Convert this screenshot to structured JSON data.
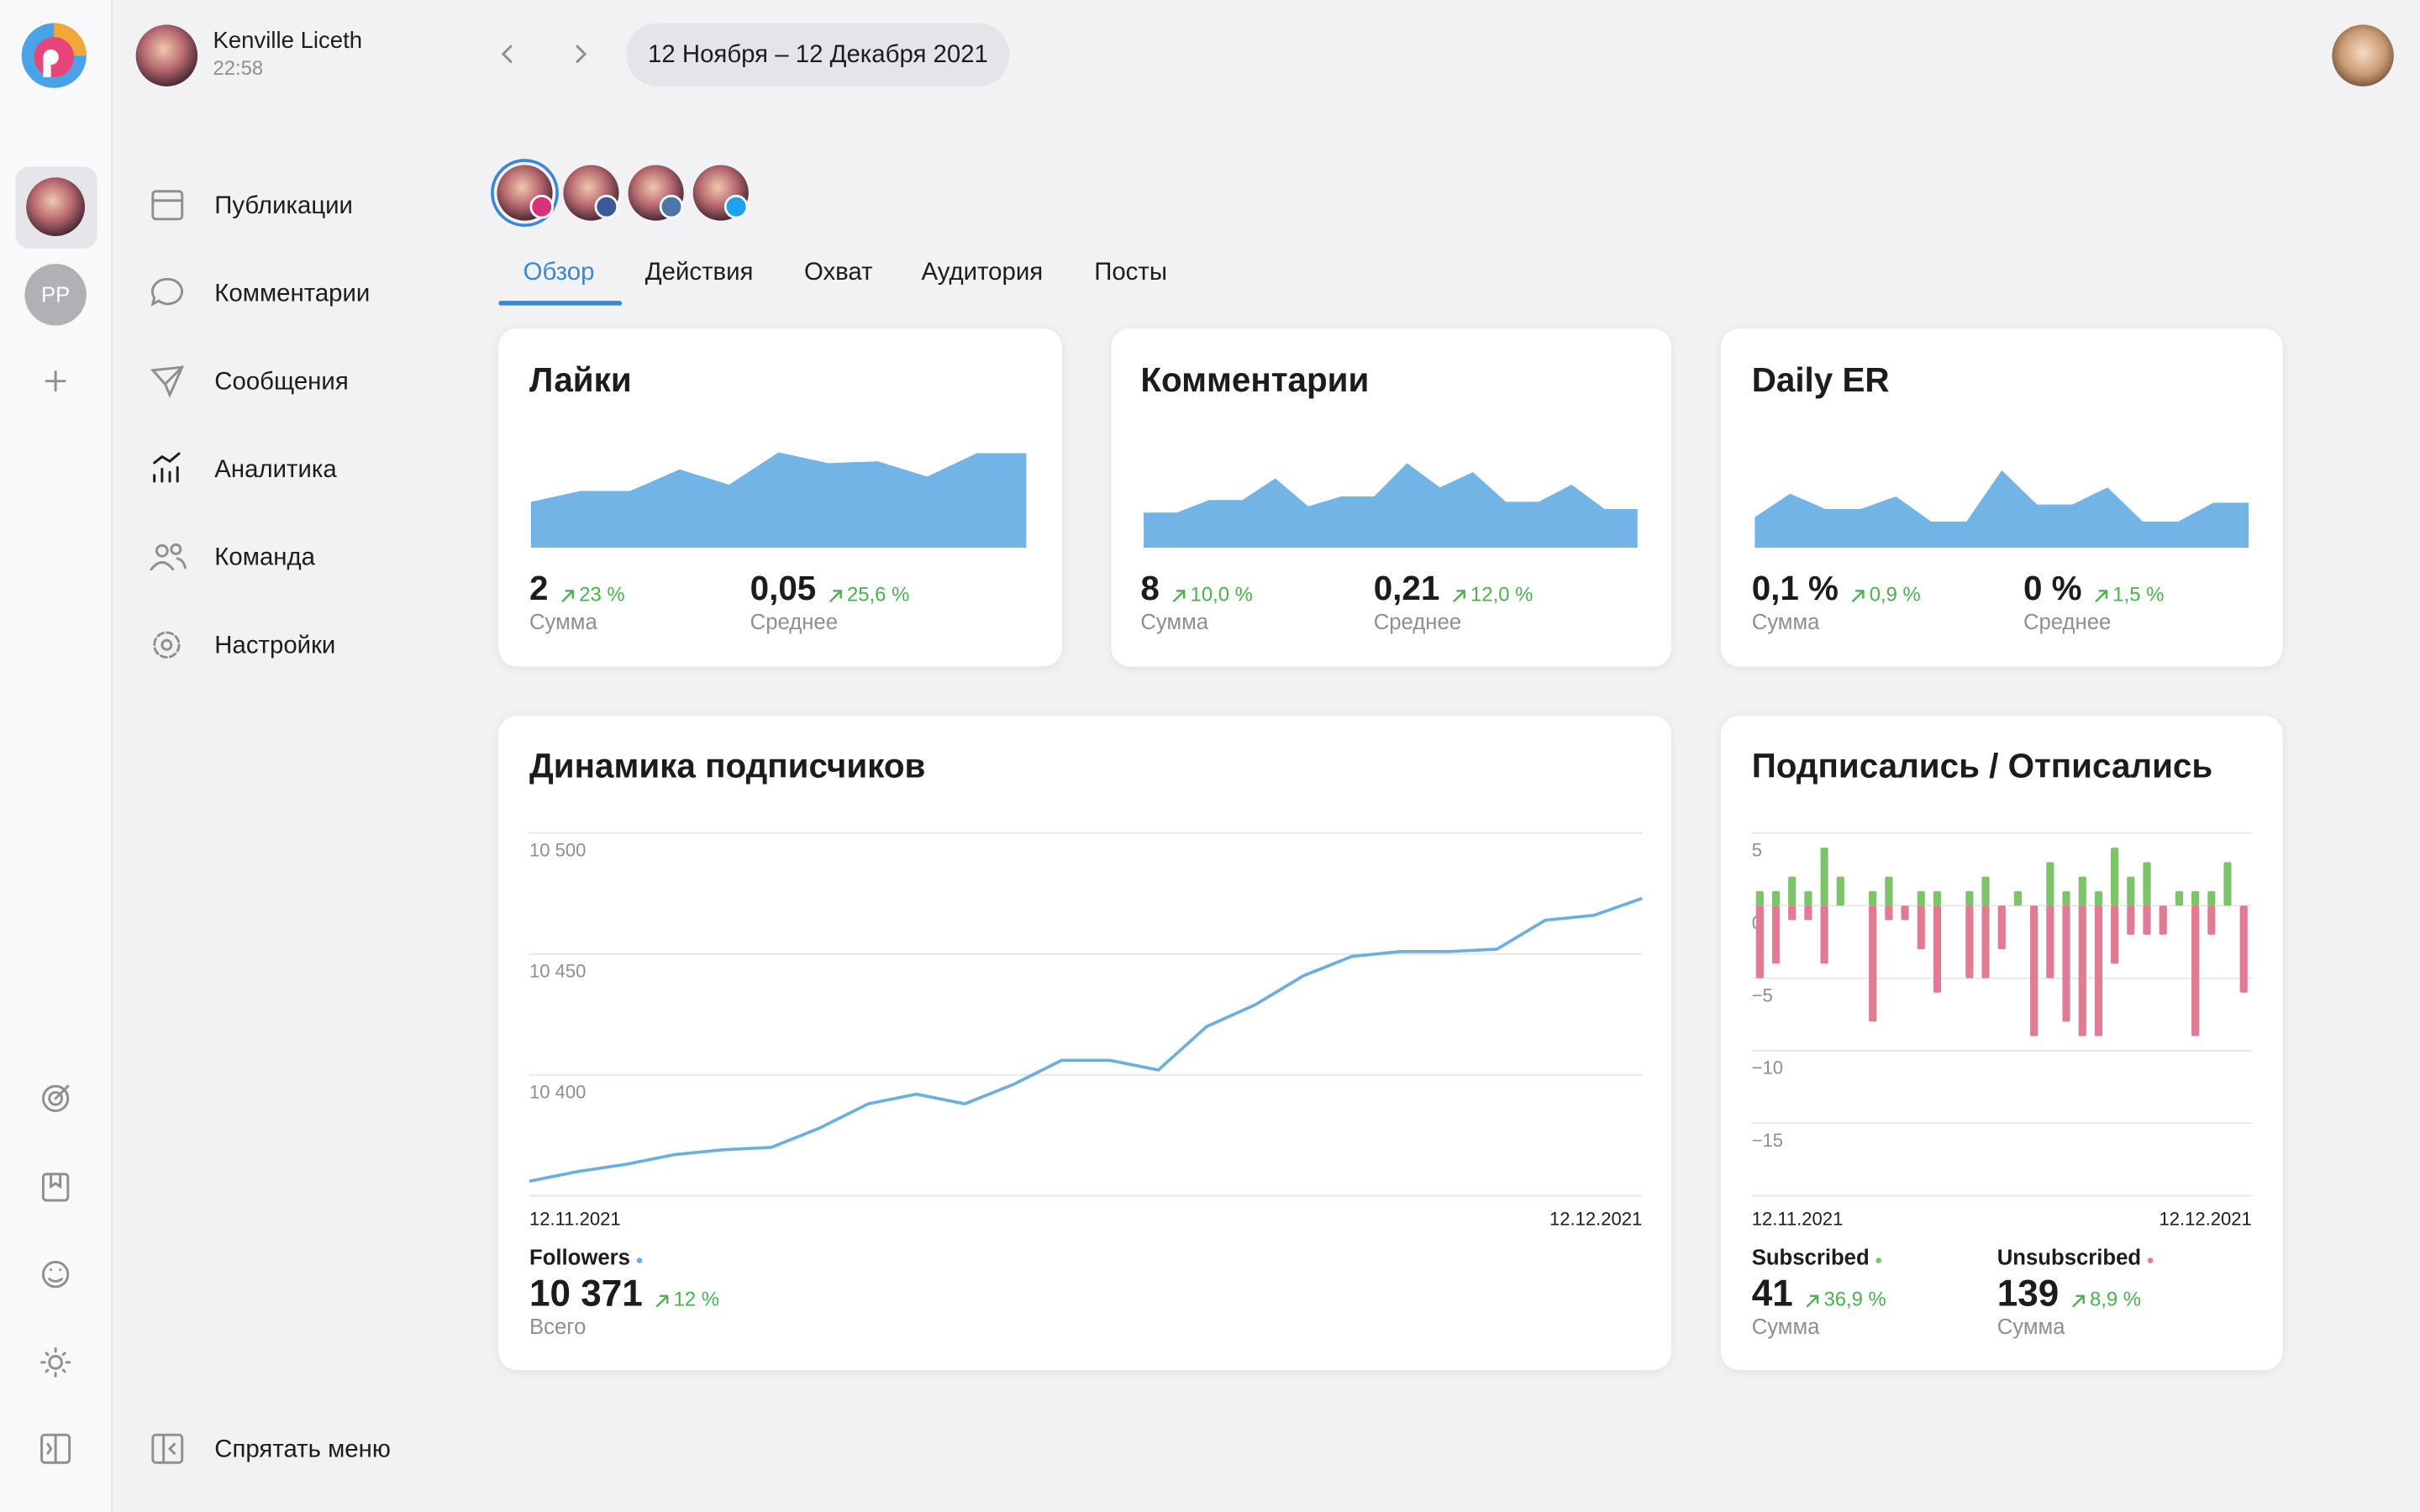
{
  "sidebar": {
    "workspace_initials": "PP",
    "nav": [
      "Публикации",
      "Комментарии",
      "Сообщения",
      "Аналитика",
      "Команда",
      "Настройки"
    ],
    "hide_menu": "Спрятать меню"
  },
  "header": {
    "user_name": "Kenville Liceth",
    "time": "22:58",
    "date_range": "12 Ноября – 12 Декабря 2021"
  },
  "tabs": [
    "Обзор",
    "Действия",
    "Охват",
    "Аудитория",
    "Посты"
  ],
  "cards": [
    {
      "stats": [
        {
          "value": "2",
          "change": "23 %",
          "label": "Сумма"
        },
        {
          "value": "0,05",
          "change": "25,6 %",
          "label": "Среднее"
        }
      ]
    },
    {
      "stats": [
        {
          "value": "8",
          "change": "10,0 %",
          "label": "Сумма"
        },
        {
          "value": "0,21",
          "change": "12,0 %",
          "label": "Среднее"
        }
      ]
    },
    {
      "stats": [
        {
          "value": "0,1 %",
          "change": "0,9 %",
          "label": "Сумма"
        },
        {
          "value": "0 %",
          "change": "1,5 %",
          "label": "Среднее"
        }
      ]
    },
    {
      "stats": [
        {
          "value": "10 371",
          "change": "12 %",
          "label": "Всего"
        }
      ]
    },
    {
      "stats": [
        {
          "value": "41",
          "change": "36,9 %",
          "label": "Сумма"
        },
        {
          "value": "139",
          "change": "8,9 %",
          "label": "Сумма"
        }
      ]
    }
  ],
  "chart_data": [
    {
      "type": "area",
      "title": "Лайки",
      "color": "#72b4e6",
      "ylim": [
        0,
        12
      ],
      "values": [
        5.1,
        6.3,
        6.3,
        8.7,
        7.0,
        10.6,
        9.4,
        9.6,
        7.9,
        10.5,
        10.5
      ]
    },
    {
      "type": "area",
      "title": "Комментарии",
      "color": "#72b4e6",
      "ylim": [
        0,
        12
      ],
      "values": [
        3.9,
        3.9,
        5.3,
        5.3,
        7.7,
        4.6,
        5.7,
        5.7,
        9.4,
        6.7,
        8.4,
        5.1,
        5.1,
        7.0,
        4.3,
        4.3
      ]
    },
    {
      "type": "area",
      "title": "Daily ER",
      "color": "#72b4e6",
      "ylim": [
        0,
        12
      ],
      "values": [
        3.4,
        6.0,
        4.3,
        4.3,
        5.7,
        2.9,
        2.9,
        8.6,
        4.8,
        4.8,
        6.7,
        2.9,
        2.9,
        5.0,
        5.0
      ]
    },
    {
      "type": "line",
      "title": "Динамика подписчиков",
      "name": "Followers",
      "color": "#6aaee3",
      "x_labels": [
        "12.11.2021",
        "12.12.2021"
      ],
      "ylim": [
        10350,
        10500
      ],
      "yticks": [
        {
          "value": 10500,
          "label": "10 500"
        },
        {
          "value": 10450,
          "label": "10 450"
        },
        {
          "value": 10400,
          "label": "10 400"
        }
      ],
      "grid": true,
      "values": [
        10356,
        10360,
        10363,
        10367,
        10369,
        10370,
        10378,
        10388,
        10392,
        10388,
        10396,
        10406,
        10406,
        10402,
        10420,
        10429,
        10441,
        10449,
        10451,
        10451,
        10452,
        10464,
        10466,
        10473
      ]
    },
    {
      "type": "bar",
      "title": "Подписались / Отписались",
      "x_labels": [
        "12.11.2021",
        "12.12.2021"
      ],
      "ylim": [
        -20,
        5
      ],
      "yticks": [
        5,
        0,
        {
          "value": -5,
          "label": "−5"
        },
        {
          "value": -10,
          "label": "−10"
        },
        {
          "value": -15,
          "label": "−15"
        }
      ],
      "grid": true,
      "series": [
        {
          "name": "Subscribed",
          "color": "#7cc36a",
          "values": [
            1,
            1,
            2,
            1,
            4,
            2,
            0,
            1,
            2,
            0,
            1,
            1,
            0,
            1,
            2,
            0,
            1,
            0,
            3,
            1,
            2,
            1,
            4,
            2,
            3,
            0,
            1,
            1,
            1,
            3,
            0
          ]
        },
        {
          "name": "Unsubscribed",
          "color": "#e17a93",
          "values": [
            -5,
            -4,
            -1,
            -1,
            -4,
            0,
            0,
            -8,
            -1,
            -1,
            -3,
            -6,
            0,
            -5,
            -5,
            -3,
            0,
            -9,
            -5,
            -8,
            -9,
            -9,
            -4,
            -2,
            -2,
            -2,
            0,
            -9,
            -2,
            0,
            -6
          ]
        }
      ]
    }
  ]
}
